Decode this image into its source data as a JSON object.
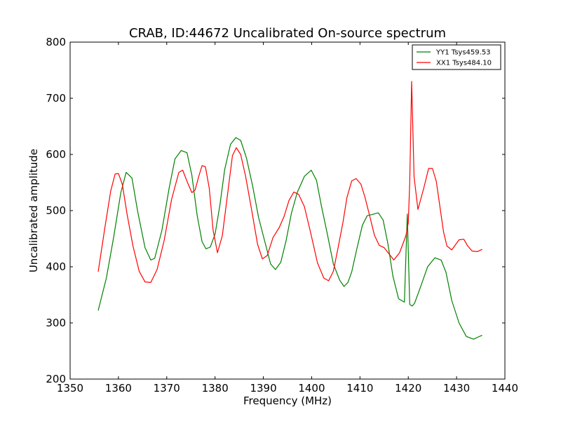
{
  "chart_data": {
    "type": "line",
    "title": "CRAB, ID:44672 Uncalibrated On-source spectrum",
    "xlabel": "Frequency (MHz)",
    "ylabel": "Uncalibrated amplitude",
    "xlim": [
      1350,
      1440
    ],
    "ylim": [
      200,
      800
    ],
    "xticks": [
      "1350",
      "1360",
      "1370",
      "1380",
      "1390",
      "1400",
      "1410",
      "1420",
      "1430",
      "1440"
    ],
    "yticks": [
      "200",
      "300",
      "400",
      "500",
      "600",
      "700",
      "800"
    ],
    "grid": false,
    "legend_position": "top-right",
    "series": [
      {
        "name": "YY1 Tsys459.53",
        "color": "#008000",
        "x": [
          1355.8,
          1357.5,
          1359.0,
          1360.5,
          1361.6,
          1362.8,
          1364.0,
          1365.5,
          1366.7,
          1367.5,
          1369.0,
          1370.5,
          1371.7,
          1373.0,
          1374.2,
          1375.2,
          1376.3,
          1377.3,
          1378.1,
          1379.0,
          1380.0,
          1381.0,
          1382.0,
          1383.2,
          1384.3,
          1385.3,
          1386.5,
          1387.8,
          1389.0,
          1390.3,
          1391.5,
          1392.5,
          1393.6,
          1394.7,
          1395.8,
          1397.0,
          1398.5,
          1399.9,
          1401.0,
          1402.0,
          1403.2,
          1404.5,
          1405.8,
          1406.7,
          1407.5,
          1408.3,
          1409.3,
          1410.5,
          1411.5,
          1412.5,
          1413.8,
          1414.8,
          1415.8,
          1416.8,
          1418.0,
          1419.2,
          1419.8,
          1420.3,
          1420.8,
          1421.3,
          1422.5,
          1424.0,
          1425.5,
          1426.8,
          1427.8,
          1429.0,
          1430.5,
          1432.0,
          1433.5,
          1434.5,
          1435.3
        ],
        "y": [
          322,
          380,
          452,
          532,
          568,
          558,
          498,
          434,
          412,
          415,
          465,
          540,
          592,
          607,
          603,
          563,
          491,
          445,
          432,
          435,
          458,
          510,
          573,
          618,
          630,
          625,
          594,
          543,
          488,
          445,
          405,
          395,
          408,
          446,
          495,
          532,
          561,
          572,
          554,
          509,
          460,
          405,
          376,
          365,
          372,
          391,
          430,
          474,
          491,
          493,
          496,
          483,
          440,
          384,
          343,
          337,
          494,
          333,
          330,
          335,
          363,
          400,
          416,
          412,
          390,
          340,
          300,
          276,
          271,
          275,
          278
        ]
      },
      {
        "name": "XX1 Tsys484.10",
        "color": "#ff0000",
        "x": [
          1355.8,
          1357.2,
          1358.4,
          1359.3,
          1360.0,
          1360.8,
          1361.8,
          1363.0,
          1364.3,
          1365.5,
          1366.7,
          1368.0,
          1369.5,
          1371.0,
          1372.5,
          1373.3,
          1374.3,
          1375.2,
          1375.9,
          1376.6,
          1377.3,
          1378.0,
          1378.8,
          1379.6,
          1380.5,
          1381.5,
          1382.6,
          1383.6,
          1384.4,
          1385.3,
          1386.3,
          1387.5,
          1388.8,
          1389.8,
          1390.8,
          1392.0,
          1393.3,
          1394.3,
          1395.3,
          1396.3,
          1397.3,
          1398.5,
          1399.8,
          1401.2,
          1402.5,
          1403.5,
          1404.5,
          1405.5,
          1406.5,
          1407.3,
          1408.3,
          1409.2,
          1410.2,
          1411.0,
          1411.8,
          1413.0,
          1414.0,
          1415.0,
          1416.2,
          1417.0,
          1418.2,
          1419.5,
          1420.0,
          1420.3,
          1420.7,
          1421.2,
          1422.0,
          1423.2,
          1424.2,
          1425.0,
          1425.8,
          1426.5,
          1427.3,
          1428.0,
          1429.0,
          1430.5,
          1431.5,
          1432.3,
          1433.2,
          1434.3,
          1435.3
        ],
        "y": [
          391,
          470,
          535,
          565,
          566,
          547,
          493,
          437,
          392,
          373,
          372,
          395,
          448,
          520,
          568,
          572,
          550,
          532,
          537,
          560,
          580,
          578,
          540,
          465,
          425,
          455,
          530,
          598,
          612,
          600,
          562,
          505,
          440,
          414,
          420,
          452,
          470,
          490,
          518,
          533,
          529,
          507,
          460,
          407,
          380,
          375,
          392,
          435,
          480,
          523,
          553,
          557,
          547,
          525,
          498,
          456,
          438,
          434,
          421,
          412,
          425,
          455,
          478,
          550,
          730,
          560,
          502,
          540,
          575,
          575,
          552,
          510,
          462,
          437,
          430,
          448,
          449,
          437,
          428,
          427,
          431
        ]
      }
    ]
  }
}
